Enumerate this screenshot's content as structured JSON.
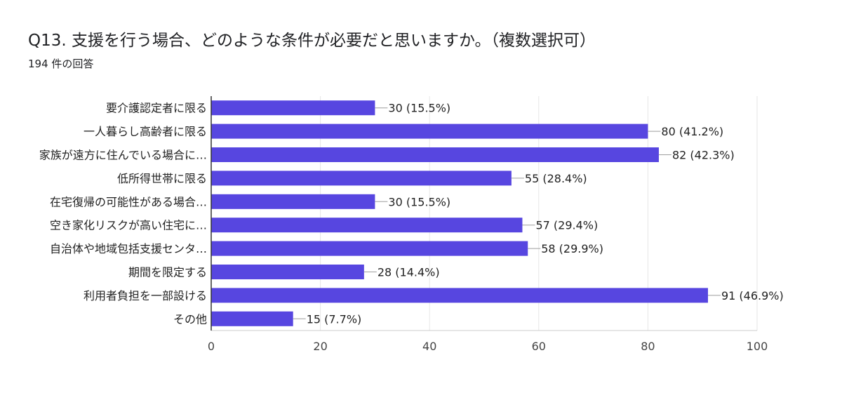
{
  "header": {
    "title": "Q13. 支援を行う場合、どのような条件が必要だと思いますか。（複数選択可）",
    "subtitle": "194 件の回答"
  },
  "chart_data": {
    "type": "bar",
    "orientation": "horizontal",
    "categories": [
      "要介護認定者に限る",
      "一人暮らし高齢者に限る",
      "家族が遠方に住んでいる場合に…",
      "低所得世帯に限る",
      "在宅復帰の可能性がある場合…",
      "空き家化リスクが高い住宅に…",
      "自治体や地域包括支援センタ…",
      "期間を限定する",
      "利用者負担を一部設ける",
      "その他"
    ],
    "values": [
      30,
      80,
      82,
      55,
      30,
      57,
      58,
      28,
      91,
      15
    ],
    "data_labels": [
      "30 (15.5%)",
      "80 (41.2%)",
      "82 (42.3%)",
      "55 (28.4%)",
      "30 (15.5%)",
      "57 (29.4%)",
      "58 (29.9%)",
      "28 (14.4%)",
      "91 (46.9%)",
      "15 (7.7%)"
    ],
    "xlim": [
      0,
      100
    ],
    "xticks": [
      0,
      20,
      40,
      60,
      80,
      100
    ],
    "xtick_labels": [
      "0",
      "20",
      "40",
      "60",
      "80",
      "100"
    ],
    "grid": true,
    "bar_color": "#5746e0"
  }
}
